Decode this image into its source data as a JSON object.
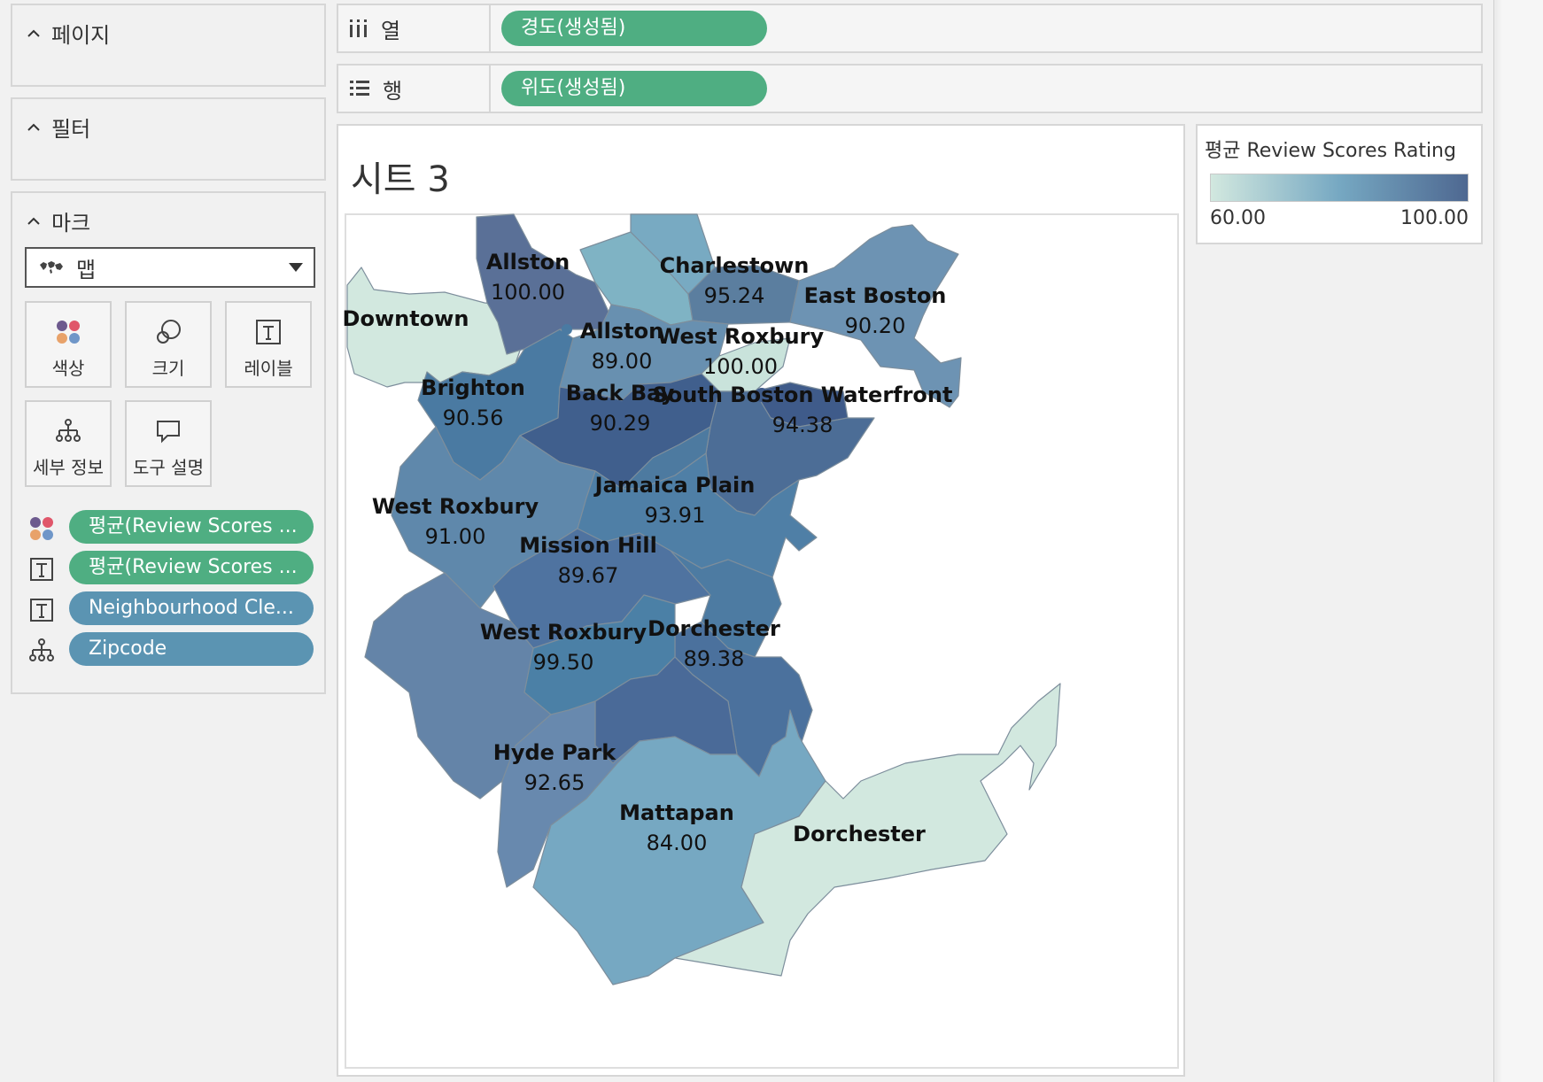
{
  "left_panel": {
    "pages": {
      "title": "페이지"
    },
    "filters": {
      "title": "필터"
    },
    "marks": {
      "title": "마크",
      "mark_type": "맵",
      "buttons": [
        {
          "label": "색상",
          "icon": "color-dots-icon"
        },
        {
          "label": "크기",
          "icon": "size-circles-icon"
        },
        {
          "label": "레이블",
          "icon": "text-label-icon"
        },
        {
          "label": "세부 정보",
          "icon": "detail-hierarchy-icon"
        },
        {
          "label": "도구 설명",
          "icon": "tooltip-bubble-icon"
        }
      ],
      "fields": [
        {
          "label": "평균(Review Scores ...",
          "icon": "color-dots-icon",
          "color": "#4fae82"
        },
        {
          "label": "평균(Review Scores ...",
          "icon": "text-label-icon",
          "color": "#4fae82"
        },
        {
          "label": "Neighbourhood Cle...",
          "icon": "text-label-icon",
          "color": "#5b94b2"
        },
        {
          "label": "Zipcode",
          "icon": "detail-hierarchy-icon",
          "color": "#5b94b2"
        }
      ]
    }
  },
  "shelves": {
    "columns": {
      "label": "열",
      "pill": "경도(생성됨)",
      "icon": "columns-icon"
    },
    "rows": {
      "label": "행",
      "pill": "위도(생성됨)",
      "icon": "rows-icon"
    }
  },
  "sheet": {
    "title": "시트 3"
  },
  "legend": {
    "title": "평균 Review Scores Rating",
    "min_label": "60.00",
    "max_label": "100.00",
    "min_value": 60,
    "max_value": 100,
    "color_low": "#d2e8df",
    "color_high": "#4e6891"
  },
  "map_labels": [
    {
      "name": "Allston",
      "value": "100.00"
    },
    {
      "name": "Charlestown",
      "value": "95.24"
    },
    {
      "name": "East Boston",
      "value": "90.20"
    },
    {
      "name": "Downtown",
      "value": ""
    },
    {
      "name": "Allston",
      "value": "89.00"
    },
    {
      "name": "West Roxbury",
      "value": "100.00"
    },
    {
      "name": "Brighton",
      "value": "90.56"
    },
    {
      "name": "Back Bay",
      "value": "90.29"
    },
    {
      "name": "South Boston Waterfront",
      "value": "94.38"
    },
    {
      "name": "Jamaica Plain",
      "value": "93.91"
    },
    {
      "name": "West Roxbury",
      "value": "91.00"
    },
    {
      "name": "Mission Hill",
      "value": "89.67"
    },
    {
      "name": "West Roxbury",
      "value": "99.50"
    },
    {
      "name": "Dorchester",
      "value": "89.38"
    },
    {
      "name": "Hyde Park",
      "value": "92.65"
    },
    {
      "name": "Mattapan",
      "value": "84.00"
    },
    {
      "name": "Dorchester",
      "value": ""
    }
  ]
}
